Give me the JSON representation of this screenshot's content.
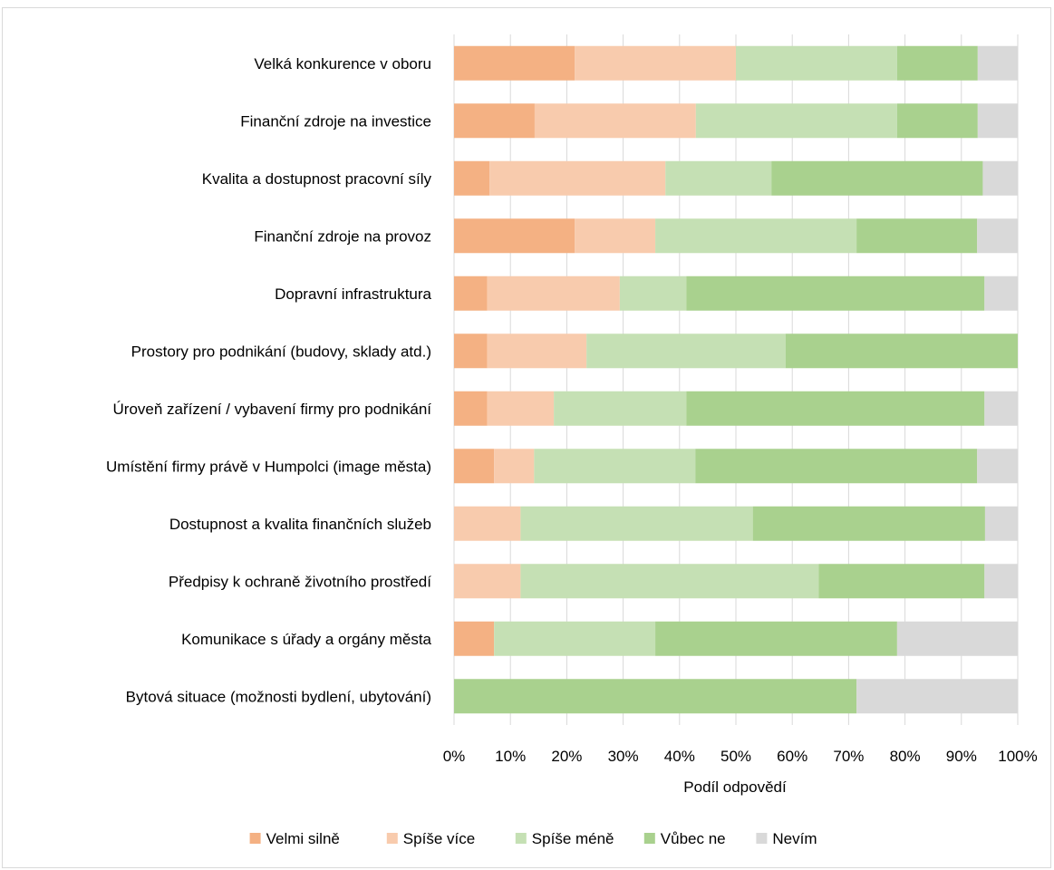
{
  "chart_data": {
    "type": "bar",
    "orientation": "horizontal",
    "stacked": "percent",
    "title": "",
    "xlabel": "Podíl odpovědí",
    "ylabel": "",
    "xlim": [
      0,
      100
    ],
    "xticks": [
      "0%",
      "10%",
      "20%",
      "30%",
      "40%",
      "50%",
      "60%",
      "70%",
      "80%",
      "90%",
      "100%"
    ],
    "grid": "vertical",
    "legend_position": "bottom",
    "categories": [
      "Velká konkurence v oboru",
      "Finanční zdroje na investice",
      "Kvalita a dostupnost pracovní síly",
      "Finanční zdroje na provoz",
      "Dopravní infrastruktura",
      "Prostory pro podnikání (budovy, sklady atd.)",
      "Úroveň zařízení / vybavení firmy pro podnikání",
      "Umístění firmy právě v Humpolci (image města)",
      "Dostupnost a kvalita finančních služeb",
      "Předpisy k ochraně životního prostředí",
      "Komunikace s úřady a orgány města",
      "Bytová situace (možnosti bydlení, ubytování)"
    ],
    "series": [
      {
        "name": "Velmi silně",
        "color": "#f4b183",
        "values": [
          21.4,
          14.3,
          6.3,
          21.4,
          5.9,
          5.9,
          5.9,
          7.1,
          0,
          0,
          7.1,
          0
        ]
      },
      {
        "name": "Spíše více",
        "color": "#f8cbad",
        "values": [
          28.6,
          28.6,
          31.2,
          14.3,
          23.5,
          17.6,
          11.8,
          7.1,
          11.8,
          11.8,
          0,
          0
        ]
      },
      {
        "name": "Spíše méně",
        "color": "#c5e0b4",
        "values": [
          28.6,
          35.7,
          18.8,
          35.7,
          11.8,
          35.3,
          23.5,
          28.6,
          41.2,
          52.9,
          28.6,
          0
        ]
      },
      {
        "name": "Vůbec ne",
        "color": "#a9d18e",
        "values": [
          14.3,
          14.3,
          37.5,
          21.4,
          52.9,
          41.2,
          52.9,
          50.0,
          41.2,
          29.4,
          42.9,
          71.4
        ]
      },
      {
        "name": "Nevím",
        "color": "#d9d9d9",
        "values": [
          7.1,
          7.1,
          6.2,
          7.2,
          5.9,
          0,
          5.9,
          7.2,
          5.8,
          5.9,
          21.4,
          28.6
        ]
      }
    ]
  }
}
